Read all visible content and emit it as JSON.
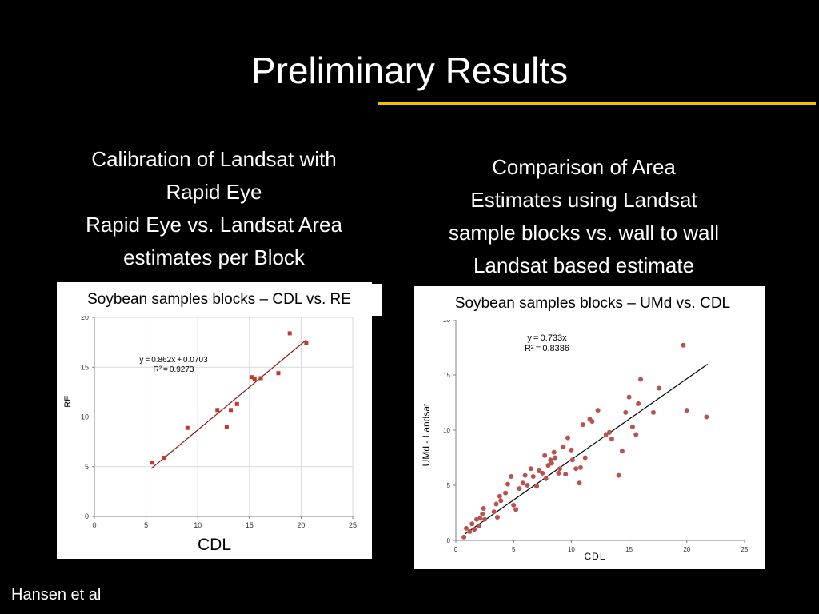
{
  "title": "Preliminary Results",
  "colors": {
    "accent_rule": "#f2c100",
    "left_point": "#c0392b",
    "left_line": "#8b1a1a",
    "right_point": "#b85450",
    "right_line": "#000000"
  },
  "left_heading": [
    "Calibration of Landsat with",
    "Rapid Eye",
    "Rapid Eye vs. Landsat Area",
    "estimates per Block"
  ],
  "right_heading": [
    "Comparison of Area",
    "Estimates using Landsat",
    "sample blocks vs. wall to wall",
    "Landsat based estimate"
  ],
  "footer": "Hansen et al",
  "chart_data": [
    {
      "type": "scatter",
      "title": "Soybean samples blocks – CDL vs. RE",
      "xlabel": "CDL",
      "ylabel": "RE",
      "xlim": [
        0,
        25
      ],
      "ylim": [
        0,
        20
      ],
      "xticks": [
        "0",
        "5",
        "10",
        "15",
        "20",
        "25"
      ],
      "yticks": [
        "0",
        "5",
        "10",
        "15",
        "20"
      ],
      "grid": true,
      "equation": "y = 0.862x + 0.0703",
      "r_squared": "R² = 0.9273",
      "trendline": {
        "slope": 0.862,
        "intercept": 0.0703,
        "x_range": [
          5.5,
          20.5
        ]
      },
      "points": [
        [
          5.6,
          5.4
        ],
        [
          6.7,
          5.9
        ],
        [
          9.0,
          8.9
        ],
        [
          11.9,
          10.7
        ],
        [
          12.8,
          9.0
        ],
        [
          13.2,
          10.7
        ],
        [
          13.8,
          11.3
        ],
        [
          15.2,
          14.0
        ],
        [
          15.5,
          13.8
        ],
        [
          16.1,
          13.9
        ],
        [
          17.8,
          14.4
        ],
        [
          18.9,
          18.4
        ],
        [
          20.5,
          17.4
        ]
      ]
    },
    {
      "type": "scatter",
      "title": "Soybean samples blocks – UMd vs. CDL",
      "xlabel": "CDL",
      "ylabel": "UMd - Landsat",
      "xlim": [
        0,
        25
      ],
      "ylim": [
        0,
        20
      ],
      "xticks": [
        "0",
        "5",
        "10",
        "15",
        "20",
        "25"
      ],
      "yticks": [
        "0",
        "5",
        "10",
        "15",
        "20"
      ],
      "grid": false,
      "equation": "y = 0.733x",
      "r_squared": "R² = 0.8386",
      "trendline": {
        "slope": 0.733,
        "intercept": 0,
        "x_range": [
          0.8,
          21.8
        ]
      },
      "points": [
        [
          0.7,
          0.3
        ],
        [
          0.9,
          1.1
        ],
        [
          1.2,
          0.8
        ],
        [
          1.4,
          1.5
        ],
        [
          1.6,
          1.0
        ],
        [
          1.8,
          1.9
        ],
        [
          2.0,
          1.3
        ],
        [
          2.1,
          2.0
        ],
        [
          2.3,
          2.4
        ],
        [
          2.4,
          2.9
        ],
        [
          2.5,
          1.9
        ],
        [
          3.3,
          2.6
        ],
        [
          3.5,
          3.3
        ],
        [
          3.6,
          2.1
        ],
        [
          3.8,
          4.0
        ],
        [
          3.9,
          3.6
        ],
        [
          4.3,
          4.3
        ],
        [
          4.5,
          5.1
        ],
        [
          4.8,
          5.8
        ],
        [
          5.0,
          3.2
        ],
        [
          5.2,
          2.8
        ],
        [
          5.5,
          4.7
        ],
        [
          5.8,
          5.2
        ],
        [
          6.0,
          5.9
        ],
        [
          6.2,
          5.0
        ],
        [
          6.5,
          6.5
        ],
        [
          6.7,
          5.8
        ],
        [
          7.0,
          4.9
        ],
        [
          7.2,
          6.3
        ],
        [
          7.5,
          6.1
        ],
        [
          7.7,
          7.7
        ],
        [
          7.8,
          5.6
        ],
        [
          8.0,
          6.8
        ],
        [
          8.2,
          7.3
        ],
        [
          8.3,
          7.0
        ],
        [
          8.5,
          8.0
        ],
        [
          8.6,
          7.5
        ],
        [
          8.9,
          6.1
        ],
        [
          9.0,
          6.5
        ],
        [
          9.3,
          8.5
        ],
        [
          9.5,
          6.0
        ],
        [
          9.7,
          9.3
        ],
        [
          10.0,
          8.2
        ],
        [
          10.1,
          7.3
        ],
        [
          10.4,
          6.5
        ],
        [
          10.7,
          5.2
        ],
        [
          10.8,
          6.6
        ],
        [
          11.0,
          10.5
        ],
        [
          11.2,
          7.5
        ],
        [
          11.6,
          11.0
        ],
        [
          11.8,
          10.8
        ],
        [
          12.3,
          11.8
        ],
        [
          13.0,
          9.6
        ],
        [
          13.3,
          9.8
        ],
        [
          13.5,
          9.2
        ],
        [
          14.1,
          5.9
        ],
        [
          14.4,
          8.1
        ],
        [
          14.7,
          11.6
        ],
        [
          15.0,
          13.0
        ],
        [
          15.3,
          10.3
        ],
        [
          15.6,
          9.6
        ],
        [
          15.8,
          12.4
        ],
        [
          16.0,
          14.6
        ],
        [
          17.1,
          11.6
        ],
        [
          17.6,
          13.8
        ],
        [
          19.7,
          17.7
        ],
        [
          20.0,
          11.8
        ],
        [
          21.7,
          11.2
        ]
      ]
    }
  ]
}
